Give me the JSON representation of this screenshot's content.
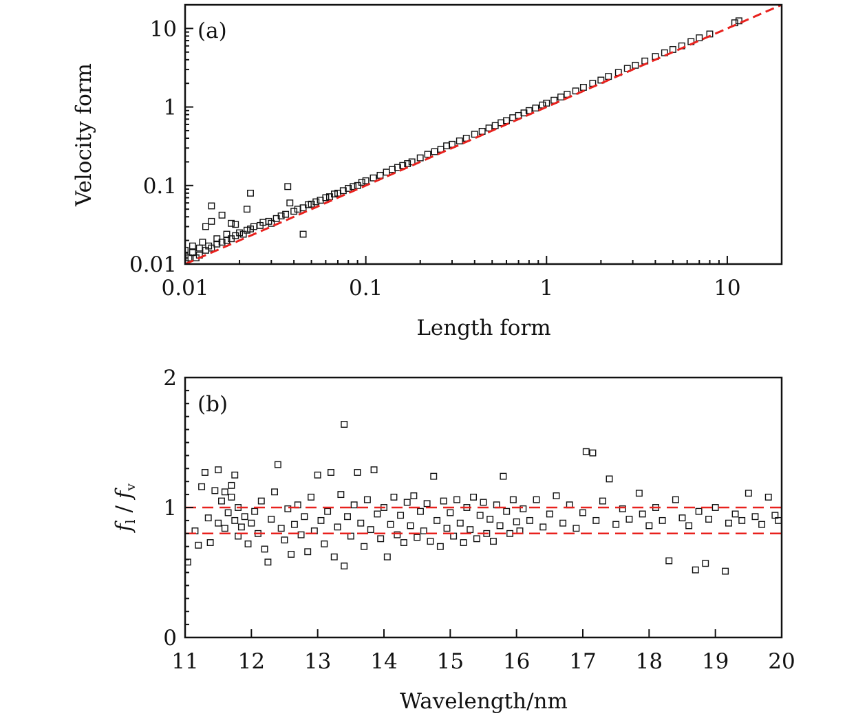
{
  "chart_data": [
    {
      "type": "scatter",
      "panel_label": "(a)",
      "xlabel": "Length form",
      "ylabel": "Velocity form",
      "xscale": "log",
      "yscale": "log",
      "xlim": [
        0.01,
        20
      ],
      "ylim": [
        0.01,
        20
      ],
      "xticks": [
        0.01,
        0.1,
        1,
        10
      ],
      "xtick_labels": [
        "0.01",
        "0.1",
        "1",
        "10"
      ],
      "yticks": [
        0.01,
        0.1,
        1,
        10
      ],
      "ytick_labels": [
        "0.01",
        "0.1",
        "1",
        "10"
      ],
      "grid": false,
      "marker": "open-square",
      "marker_color": "#111111",
      "reference_line": {
        "type": "y=x",
        "color": "#e8211d",
        "style": "dashed"
      },
      "points": [
        [
          0.01,
          0.011
        ],
        [
          0.01,
          0.013
        ],
        [
          0.01,
          0.015
        ],
        [
          0.0105,
          0.012
        ],
        [
          0.011,
          0.014
        ],
        [
          0.011,
          0.017
        ],
        [
          0.0115,
          0.012
        ],
        [
          0.012,
          0.016
        ],
        [
          0.012,
          0.013
        ],
        [
          0.0125,
          0.019
        ],
        [
          0.013,
          0.015
        ],
        [
          0.013,
          0.03
        ],
        [
          0.0135,
          0.017
        ],
        [
          0.014,
          0.016
        ],
        [
          0.014,
          0.055
        ],
        [
          0.014,
          0.035
        ],
        [
          0.015,
          0.018
        ],
        [
          0.015,
          0.021
        ],
        [
          0.016,
          0.019
        ],
        [
          0.016,
          0.042
        ],
        [
          0.017,
          0.02
        ],
        [
          0.017,
          0.024
        ],
        [
          0.018,
          0.021
        ],
        [
          0.018,
          0.033
        ],
        [
          0.019,
          0.023
        ],
        [
          0.019,
          0.032
        ],
        [
          0.02,
          0.025
        ],
        [
          0.021,
          0.024
        ],
        [
          0.022,
          0.05
        ],
        [
          0.022,
          0.027
        ],
        [
          0.023,
          0.08
        ],
        [
          0.023,
          0.028
        ],
        [
          0.024,
          0.03
        ],
        [
          0.026,
          0.031
        ],
        [
          0.027,
          0.034
        ],
        [
          0.029,
          0.035
        ],
        [
          0.03,
          0.033
        ],
        [
          0.032,
          0.038
        ],
        [
          0.034,
          0.041
        ],
        [
          0.036,
          0.043
        ],
        [
          0.037,
          0.097
        ],
        [
          0.038,
          0.06
        ],
        [
          0.04,
          0.047
        ],
        [
          0.042,
          0.05
        ],
        [
          0.045,
          0.024
        ],
        [
          0.045,
          0.052
        ],
        [
          0.048,
          0.057
        ],
        [
          0.05,
          0.058
        ],
        [
          0.053,
          0.062
        ],
        [
          0.056,
          0.065
        ],
        [
          0.06,
          0.07
        ],
        [
          0.063,
          0.072
        ],
        [
          0.067,
          0.078
        ],
        [
          0.07,
          0.08
        ],
        [
          0.075,
          0.086
        ],
        [
          0.08,
          0.092
        ],
        [
          0.085,
          0.097
        ],
        [
          0.09,
          0.1
        ],
        [
          0.095,
          0.11
        ],
        [
          0.1,
          0.115
        ],
        [
          0.11,
          0.125
        ],
        [
          0.12,
          0.135
        ],
        [
          0.13,
          0.148
        ],
        [
          0.14,
          0.16
        ],
        [
          0.15,
          0.17
        ],
        [
          0.16,
          0.18
        ],
        [
          0.17,
          0.19
        ],
        [
          0.18,
          0.2
        ],
        [
          0.2,
          0.225
        ],
        [
          0.22,
          0.25
        ],
        [
          0.24,
          0.27
        ],
        [
          0.26,
          0.29
        ],
        [
          0.28,
          0.32
        ],
        [
          0.3,
          0.335
        ],
        [
          0.33,
          0.37
        ],
        [
          0.36,
          0.4
        ],
        [
          0.4,
          0.45
        ],
        [
          0.44,
          0.49
        ],
        [
          0.48,
          0.54
        ],
        [
          0.52,
          0.58
        ],
        [
          0.56,
          0.63
        ],
        [
          0.6,
          0.67
        ],
        [
          0.65,
          0.73
        ],
        [
          0.7,
          0.78
        ],
        [
          0.75,
          0.84
        ],
        [
          0.8,
          0.9
        ],
        [
          0.87,
          0.97
        ],
        [
          0.95,
          1.06
        ],
        [
          1.0,
          1.12
        ],
        [
          1.1,
          1.22
        ],
        [
          1.2,
          1.34
        ],
        [
          1.3,
          1.45
        ],
        [
          1.45,
          1.6
        ],
        [
          1.6,
          1.78
        ],
        [
          1.8,
          2.0
        ],
        [
          2.0,
          2.2
        ],
        [
          2.2,
          2.45
        ],
        [
          2.5,
          2.75
        ],
        [
          2.8,
          3.1
        ],
        [
          3.1,
          3.4
        ],
        [
          3.5,
          3.85
        ],
        [
          4.0,
          4.4
        ],
        [
          4.5,
          4.9
        ],
        [
          5.0,
          5.4
        ],
        [
          5.6,
          6.0
        ],
        [
          6.3,
          6.8
        ],
        [
          7.0,
          7.6
        ],
        [
          8.0,
          8.5
        ],
        [
          11.0,
          11.8
        ],
        [
          11.6,
          12.5
        ]
      ]
    },
    {
      "type": "scatter",
      "panel_label": "(b)",
      "xlabel": "Wavelength/nm",
      "ylabel": {
        "f1": "f",
        "sub1": "l",
        "sep": " / ",
        "f2": "f",
        "sub2": "v"
      },
      "xlim": [
        11,
        20
      ],
      "ylim": [
        0,
        2
      ],
      "xticks": [
        11,
        12,
        13,
        14,
        15,
        16,
        17,
        18,
        19,
        20
      ],
      "xtick_labels": [
        "11",
        "12",
        "13",
        "14",
        "15",
        "16",
        "17",
        "18",
        "19",
        "20"
      ],
      "yticks": [
        0,
        1,
        2
      ],
      "ytick_labels": [
        "0",
        "1",
        "2"
      ],
      "grid": false,
      "marker": "open-square",
      "marker_color": "#111111",
      "reference_lines": [
        {
          "y": 1.0,
          "color": "#e8211d",
          "style": "dashed"
        },
        {
          "y": 0.8,
          "color": "#e8211d",
          "style": "dashed"
        }
      ],
      "points": [
        [
          11.04,
          0.58
        ],
        [
          11.15,
          0.82
        ],
        [
          11.2,
          0.71
        ],
        [
          11.25,
          1.16
        ],
        [
          11.3,
          1.27
        ],
        [
          11.35,
          0.92
        ],
        [
          11.38,
          0.73
        ],
        [
          11.45,
          1.13
        ],
        [
          11.5,
          1.29
        ],
        [
          11.5,
          0.88
        ],
        [
          11.55,
          1.05
        ],
        [
          11.6,
          1.12
        ],
        [
          11.6,
          0.84
        ],
        [
          11.65,
          0.96
        ],
        [
          11.7,
          1.17
        ],
        [
          11.7,
          1.08
        ],
        [
          11.75,
          1.25
        ],
        [
          11.75,
          0.9
        ],
        [
          11.8,
          0.78
        ],
        [
          11.8,
          1.0
        ],
        [
          11.85,
          0.85
        ],
        [
          11.9,
          0.93
        ],
        [
          11.95,
          0.72
        ],
        [
          12.0,
          0.88
        ],
        [
          12.05,
          0.97
        ],
        [
          12.1,
          0.8
        ],
        [
          12.15,
          1.05
        ],
        [
          12.2,
          0.68
        ],
        [
          12.25,
          0.58
        ],
        [
          12.3,
          0.91
        ],
        [
          12.35,
          1.12
        ],
        [
          12.4,
          1.33
        ],
        [
          12.45,
          0.84
        ],
        [
          12.5,
          0.75
        ],
        [
          12.55,
          0.99
        ],
        [
          12.6,
          0.64
        ],
        [
          12.65,
          0.87
        ],
        [
          12.7,
          1.02
        ],
        [
          12.75,
          0.79
        ],
        [
          12.8,
          0.93
        ],
        [
          12.85,
          0.66
        ],
        [
          12.9,
          1.08
        ],
        [
          12.95,
          0.82
        ],
        [
          13.0,
          1.25
        ],
        [
          13.05,
          0.9
        ],
        [
          13.1,
          0.72
        ],
        [
          13.15,
          0.97
        ],
        [
          13.2,
          1.27
        ],
        [
          13.25,
          0.62
        ],
        [
          13.3,
          0.85
        ],
        [
          13.35,
          1.1
        ],
        [
          13.4,
          1.64
        ],
        [
          13.4,
          0.55
        ],
        [
          13.45,
          0.93
        ],
        [
          13.5,
          0.78
        ],
        [
          13.55,
          1.02
        ],
        [
          13.6,
          1.27
        ],
        [
          13.65,
          0.88
        ],
        [
          13.7,
          0.7
        ],
        [
          13.75,
          1.06
        ],
        [
          13.8,
          0.83
        ],
        [
          13.85,
          1.29
        ],
        [
          13.9,
          0.95
        ],
        [
          13.95,
          0.76
        ],
        [
          14.0,
          1.0
        ],
        [
          14.05,
          0.62
        ],
        [
          14.1,
          0.87
        ],
        [
          14.15,
          1.08
        ],
        [
          14.2,
          0.79
        ],
        [
          14.25,
          0.94
        ],
        [
          14.3,
          0.73
        ],
        [
          14.35,
          1.04
        ],
        [
          14.4,
          0.86
        ],
        [
          14.45,
          1.09
        ],
        [
          14.5,
          0.77
        ],
        [
          14.55,
          0.97
        ],
        [
          14.6,
          0.82
        ],
        [
          14.65,
          1.03
        ],
        [
          14.7,
          0.74
        ],
        [
          14.75,
          1.24
        ],
        [
          14.8,
          0.9
        ],
        [
          14.85,
          0.7
        ],
        [
          14.9,
          1.05
        ],
        [
          14.95,
          0.84
        ],
        [
          15.0,
          0.96
        ],
        [
          15.05,
          0.78
        ],
        [
          15.1,
          1.06
        ],
        [
          15.15,
          0.88
        ],
        [
          15.2,
          0.73
        ],
        [
          15.25,
          1.0
        ],
        [
          15.3,
          0.83
        ],
        [
          15.35,
          1.08
        ],
        [
          15.4,
          0.76
        ],
        [
          15.45,
          0.94
        ],
        [
          15.5,
          1.04
        ],
        [
          15.55,
          0.8
        ],
        [
          15.6,
          0.91
        ],
        [
          15.65,
          0.74
        ],
        [
          15.7,
          1.02
        ],
        [
          15.75,
          0.86
        ],
        [
          15.8,
          1.24
        ],
        [
          15.85,
          0.97
        ],
        [
          15.9,
          0.8
        ],
        [
          15.95,
          1.06
        ],
        [
          16.0,
          0.89
        ],
        [
          16.05,
          0.82
        ],
        [
          16.1,
          0.99
        ],
        [
          16.2,
          0.9
        ],
        [
          16.3,
          1.06
        ],
        [
          16.4,
          0.85
        ],
        [
          16.5,
          0.95
        ],
        [
          16.6,
          1.09
        ],
        [
          16.7,
          0.88
        ],
        [
          16.8,
          1.02
        ],
        [
          16.9,
          0.84
        ],
        [
          17.0,
          0.96
        ],
        [
          17.05,
          1.43
        ],
        [
          17.15,
          1.42
        ],
        [
          17.2,
          0.9
        ],
        [
          17.3,
          1.05
        ],
        [
          17.4,
          1.22
        ],
        [
          17.5,
          0.87
        ],
        [
          17.6,
          0.99
        ],
        [
          17.7,
          0.91
        ],
        [
          17.85,
          1.11
        ],
        [
          17.9,
          0.95
        ],
        [
          18.0,
          0.86
        ],
        [
          18.1,
          1.0
        ],
        [
          18.2,
          0.9
        ],
        [
          18.3,
          0.59
        ],
        [
          18.4,
          1.06
        ],
        [
          18.5,
          0.92
        ],
        [
          18.6,
          0.86
        ],
        [
          18.7,
          0.52
        ],
        [
          18.75,
          0.97
        ],
        [
          18.85,
          0.57
        ],
        [
          18.9,
          0.91
        ],
        [
          19.0,
          1.0
        ],
        [
          19.15,
          0.51
        ],
        [
          19.2,
          0.88
        ],
        [
          19.3,
          0.95
        ],
        [
          19.4,
          0.9
        ],
        [
          19.5,
          1.11
        ],
        [
          19.6,
          0.93
        ],
        [
          19.7,
          0.87
        ],
        [
          19.8,
          1.08
        ],
        [
          19.9,
          0.94
        ],
        [
          19.95,
          0.9
        ]
      ]
    }
  ]
}
